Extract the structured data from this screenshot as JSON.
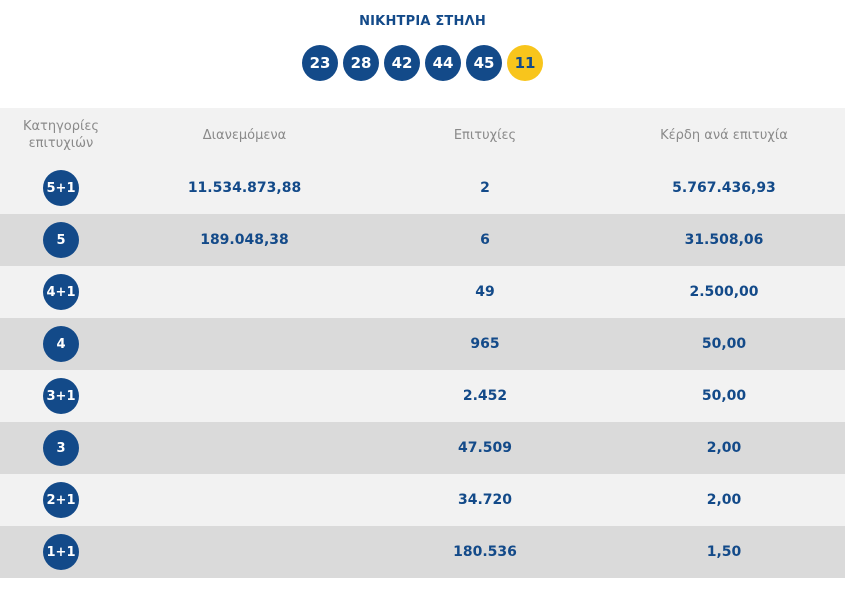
{
  "title": "ΝΙΚΗΤΡΙΑ ΣΤΗΛΗ",
  "numbers": [
    "23",
    "28",
    "42",
    "44",
    "45"
  ],
  "joker": "11",
  "headers": {
    "category": "Κατηγορίες επιτυχιών",
    "distributed": "Διανεμόμενα",
    "winners": "Επιτυχίες",
    "prize": "Κέρδη ανά επιτυχία"
  },
  "rows": [
    {
      "category": "5+1",
      "distributed": "11.534.873,88",
      "winners": "2",
      "prize": "5.767.436,93"
    },
    {
      "category": "5",
      "distributed": "189.048,38",
      "winners": "6",
      "prize": "31.508,06"
    },
    {
      "category": "4+1",
      "distributed": "",
      "winners": "49",
      "prize": "2.500,00"
    },
    {
      "category": "4",
      "distributed": "",
      "winners": "965",
      "prize": "50,00"
    },
    {
      "category": "3+1",
      "distributed": "",
      "winners": "2.452",
      "prize": "50,00"
    },
    {
      "category": "3",
      "distributed": "",
      "winners": "47.509",
      "prize": "2,00"
    },
    {
      "category": "2+1",
      "distributed": "",
      "winners": "34.720",
      "prize": "2,00"
    },
    {
      "category": "1+1",
      "distributed": "",
      "winners": "180.536",
      "prize": "1,50"
    }
  ],
  "colors": {
    "primary_blue": "#134a89",
    "joker_yellow": "#f8c51c",
    "row_light": "#f2f2f2",
    "row_dark": "#dadada"
  }
}
